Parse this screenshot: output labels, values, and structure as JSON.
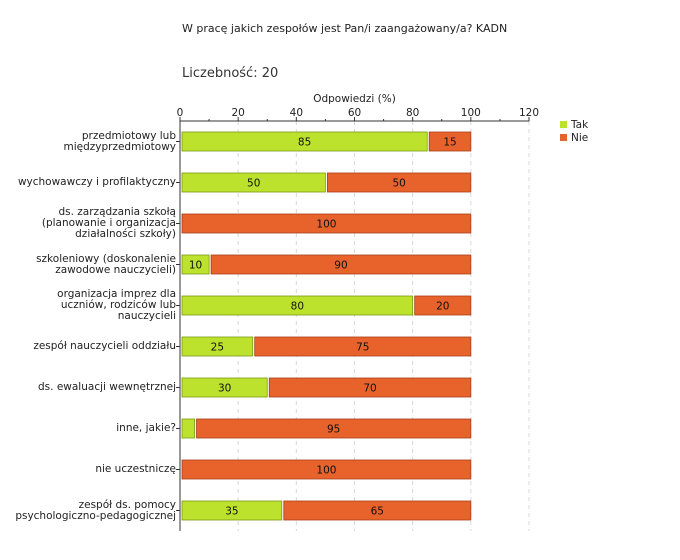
{
  "chart_data": {
    "type": "bar",
    "orientation": "horizontal",
    "stacked": true,
    "title": "W pracę jakich zespołów jest Pan/i zaangażowany/a? KADN",
    "count_label": "Liczebność: 20",
    "xlabel": "Odpowiedzi (%)",
    "xlim": [
      0,
      120
    ],
    "xticks": [
      "0",
      "20",
      "40",
      "60",
      "80",
      "100",
      "120"
    ],
    "grid": true,
    "legend_position": "right",
    "categories": [
      "przedmiotowy lub\nmiędzyprzedmiotowy",
      "wychowawczy i profilaktyczny",
      "ds. zarządzania szkołą\n(planowanie i organizacja\ndziałalności szkoły)",
      "szkoleniowy (doskonalenie\nzawodowe nauczycieli)",
      "organizacja imprez dla\nuczniów, rodziców lub\nnauczycieli",
      "zespół nauczycieli oddziału",
      "ds. ewaluacji wewnętrznej",
      "inne, jakie?",
      "nie uczestniczę",
      "zespół ds. pomocy\npsychologiczno-pedagogicznej"
    ],
    "series": [
      {
        "name": "Tak",
        "color": "#bde22e",
        "values": [
          85,
          50,
          0,
          10,
          80,
          25,
          30,
          5,
          0,
          35
        ],
        "labels": [
          "85",
          "50",
          "",
          "10",
          "80",
          "25",
          "30",
          "",
          "",
          "35"
        ]
      },
      {
        "name": "Nie",
        "color": "#e8622c",
        "values": [
          15,
          50,
          100,
          90,
          20,
          75,
          70,
          95,
          100,
          65
        ],
        "labels": [
          "15",
          "50",
          "100",
          "90",
          "20",
          "75",
          "70",
          "95",
          "100",
          "65"
        ]
      }
    ]
  }
}
